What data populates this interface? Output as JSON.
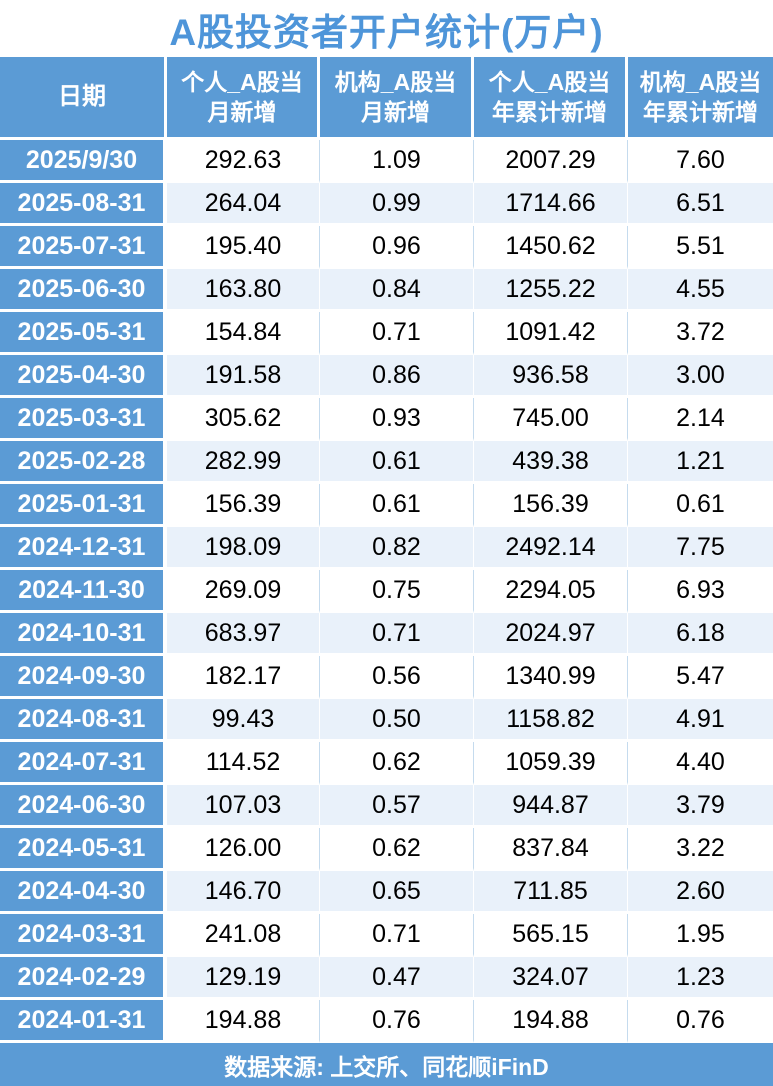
{
  "title": "A股投资者开户统计(万户)",
  "footer": {
    "source_label": "数据来源: 上交所、同花顺iFinD"
  },
  "colors": {
    "header_blue": "#5B9BD5",
    "title_blue": "#4E95D9",
    "row_alt": "#E9F1FA",
    "grid_line": "#C5DBEE",
    "header_text": "#FFFFFF",
    "cell_text": "#000000"
  },
  "table": {
    "columns": [
      "日期",
      "个人_A股当\n月新增",
      "机构_A股当\n月新增",
      "个人_A股当\n年累计新增",
      "机构_A股当\n年累计新增"
    ],
    "column_keys": [
      "date",
      "personal-monthly",
      "institution-monthly",
      "personal-ytd",
      "institution-ytd"
    ],
    "rows": [
      {
        "date": "2025/9/30",
        "values": [
          "292.63",
          "1.09",
          "2007.29",
          "7.60"
        ]
      },
      {
        "date": "2025-08-31",
        "values": [
          "264.04",
          "0.99",
          "1714.66",
          "6.51"
        ]
      },
      {
        "date": "2025-07-31",
        "values": [
          "195.40",
          "0.96",
          "1450.62",
          "5.51"
        ]
      },
      {
        "date": "2025-06-30",
        "values": [
          "163.80",
          "0.84",
          "1255.22",
          "4.55"
        ]
      },
      {
        "date": "2025-05-31",
        "values": [
          "154.84",
          "0.71",
          "1091.42",
          "3.72"
        ]
      },
      {
        "date": "2025-04-30",
        "values": [
          "191.58",
          "0.86",
          "936.58",
          "3.00"
        ]
      },
      {
        "date": "2025-03-31",
        "values": [
          "305.62",
          "0.93",
          "745.00",
          "2.14"
        ]
      },
      {
        "date": "2025-02-28",
        "values": [
          "282.99",
          "0.61",
          "439.38",
          "1.21"
        ]
      },
      {
        "date": "2025-01-31",
        "values": [
          "156.39",
          "0.61",
          "156.39",
          "0.61"
        ]
      },
      {
        "date": "2024-12-31",
        "values": [
          "198.09",
          "0.82",
          "2492.14",
          "7.75"
        ]
      },
      {
        "date": "2024-11-30",
        "values": [
          "269.09",
          "0.75",
          "2294.05",
          "6.93"
        ]
      },
      {
        "date": "2024-10-31",
        "values": [
          "683.97",
          "0.71",
          "2024.97",
          "6.18"
        ]
      },
      {
        "date": "2024-09-30",
        "values": [
          "182.17",
          "0.56",
          "1340.99",
          "5.47"
        ]
      },
      {
        "date": "2024-08-31",
        "values": [
          "99.43",
          "0.50",
          "1158.82",
          "4.91"
        ]
      },
      {
        "date": "2024-07-31",
        "values": [
          "114.52",
          "0.62",
          "1059.39",
          "4.40"
        ]
      },
      {
        "date": "2024-06-30",
        "values": [
          "107.03",
          "0.57",
          "944.87",
          "3.79"
        ]
      },
      {
        "date": "2024-05-31",
        "values": [
          "126.00",
          "0.62",
          "837.84",
          "3.22"
        ]
      },
      {
        "date": "2024-04-30",
        "values": [
          "146.70",
          "0.65",
          "711.85",
          "2.60"
        ]
      },
      {
        "date": "2024-03-31",
        "values": [
          "241.08",
          "0.71",
          "565.15",
          "1.95"
        ]
      },
      {
        "date": "2024-02-29",
        "values": [
          "129.19",
          "0.47",
          "324.07",
          "1.23"
        ]
      },
      {
        "date": "2024-01-31",
        "values": [
          "194.88",
          "0.76",
          "194.88",
          "0.76"
        ]
      }
    ]
  },
  "chart_data": {
    "type": "table",
    "title": "A股投资者开户统计(万户)",
    "unit": "万户",
    "columns": [
      "日期",
      "个人_A股当月新增",
      "机构_A股当月新增",
      "个人_A股当年累计新增",
      "机构_A股当年累计新增"
    ],
    "rows": [
      [
        "2025/9/30",
        292.63,
        1.09,
        2007.29,
        7.6
      ],
      [
        "2025-08-31",
        264.04,
        0.99,
        1714.66,
        6.51
      ],
      [
        "2025-07-31",
        195.4,
        0.96,
        1450.62,
        5.51
      ],
      [
        "2025-06-30",
        163.8,
        0.84,
        1255.22,
        4.55
      ],
      [
        "2025-05-31",
        154.84,
        0.71,
        1091.42,
        3.72
      ],
      [
        "2025-04-30",
        191.58,
        0.86,
        936.58,
        3.0
      ],
      [
        "2025-03-31",
        305.62,
        0.93,
        745.0,
        2.14
      ],
      [
        "2025-02-28",
        282.99,
        0.61,
        439.38,
        1.21
      ],
      [
        "2025-01-31",
        156.39,
        0.61,
        156.39,
        0.61
      ],
      [
        "2024-12-31",
        198.09,
        0.82,
        2492.14,
        7.75
      ],
      [
        "2024-11-30",
        269.09,
        0.75,
        2294.05,
        6.93
      ],
      [
        "2024-10-31",
        683.97,
        0.71,
        2024.97,
        6.18
      ],
      [
        "2024-09-30",
        182.17,
        0.56,
        1340.99,
        5.47
      ],
      [
        "2024-08-31",
        99.43,
        0.5,
        1158.82,
        4.91
      ],
      [
        "2024-07-31",
        114.52,
        0.62,
        1059.39,
        4.4
      ],
      [
        "2024-06-30",
        107.03,
        0.57,
        944.87,
        3.79
      ],
      [
        "2024-05-31",
        126.0,
        0.62,
        837.84,
        3.22
      ],
      [
        "2024-04-30",
        146.7,
        0.65,
        711.85,
        2.6
      ],
      [
        "2024-03-31",
        241.08,
        0.71,
        565.15,
        1.95
      ],
      [
        "2024-02-29",
        129.19,
        0.47,
        324.07,
        1.23
      ],
      [
        "2024-01-31",
        194.88,
        0.76,
        194.88,
        0.76
      ]
    ],
    "source": "数据来源: 上交所、同花顺iFinD"
  }
}
